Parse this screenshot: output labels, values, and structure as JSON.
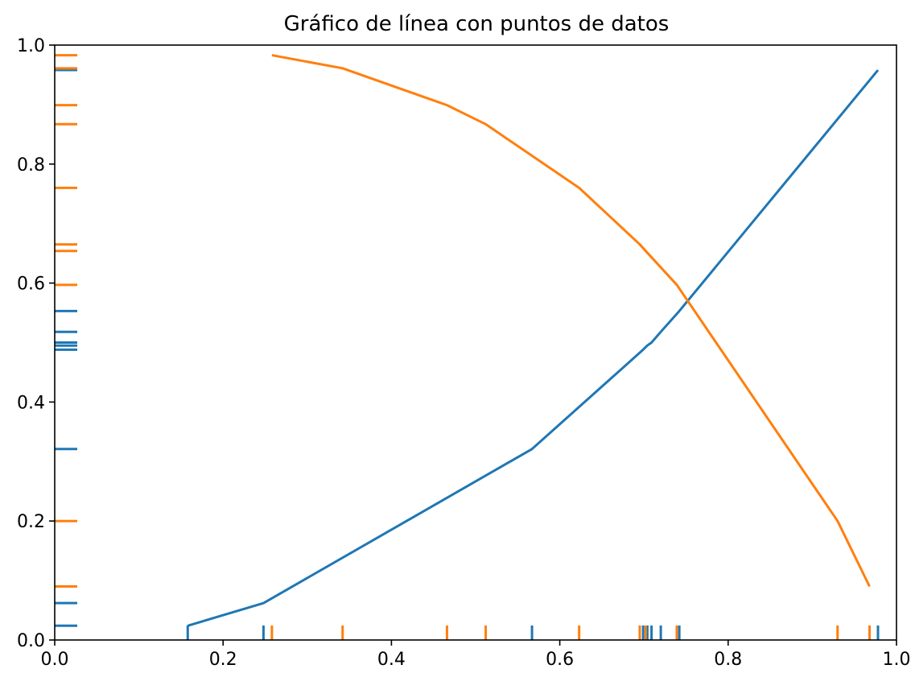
{
  "chart_data": {
    "type": "line",
    "title": "Gráfico de línea con puntos de datos",
    "xlabel": "",
    "ylabel": "",
    "xlim": [
      0,
      1
    ],
    "ylim": [
      0,
      1
    ],
    "x_ticks": [
      "0.0",
      "0.2",
      "0.4",
      "0.6",
      "0.8",
      "1.0"
    ],
    "y_ticks": [
      "0.0",
      "0.2",
      "0.4",
      "0.6",
      "0.8",
      "1.0"
    ],
    "grid": false,
    "legend": "none",
    "series": [
      {
        "color": "#1f77b4",
        "x": [
          0.158,
          0.248,
          0.567,
          0.699,
          0.704,
          0.709,
          0.72,
          0.742,
          0.978
        ],
        "y": [
          0.024,
          0.062,
          0.321,
          0.488,
          0.495,
          0.5,
          0.518,
          0.553,
          0.958
        ]
      },
      {
        "color": "#ff7f0e",
        "x": [
          0.258,
          0.342,
          0.466,
          0.512,
          0.623,
          0.695,
          0.702,
          0.739,
          0.93,
          0.968
        ],
        "y": [
          0.983,
          0.961,
          0.899,
          0.867,
          0.76,
          0.665,
          0.654,
          0.597,
          0.2,
          0.09
        ]
      }
    ],
    "rug_marks": true
  }
}
